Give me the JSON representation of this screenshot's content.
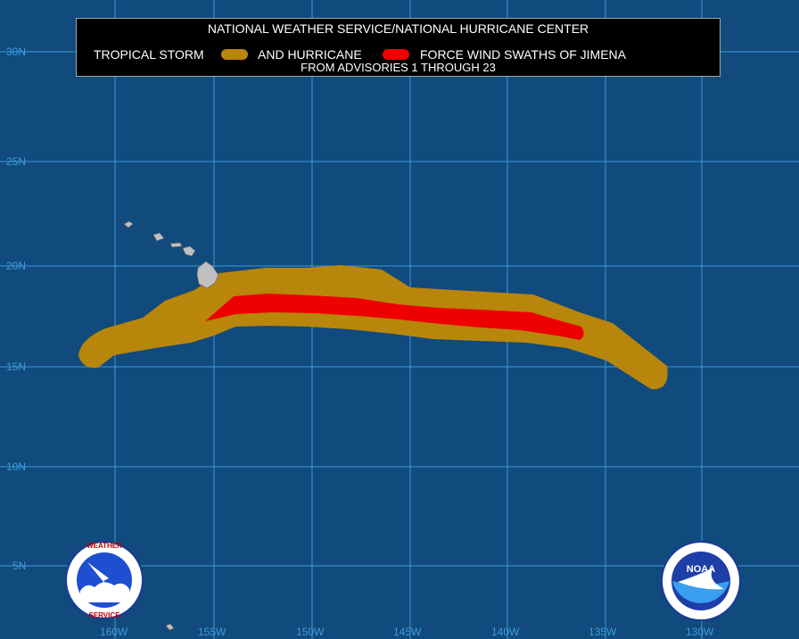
{
  "title": {
    "line1": "NATIONAL WEATHER SERVICE/NATIONAL HURRICANE CENTER",
    "ts_label": "TROPICAL STORM",
    "and_label": "AND HURRICANE",
    "force_label": "FORCE WIND SWATHS OF JIMENA",
    "line3": "FROM ADVISORIES 1 THROUGH 23"
  },
  "colors": {
    "ocean": "#114a7c",
    "grid": "#3c9bdc",
    "tropical_storm_swath": "#b8860b",
    "hurricane_swath": "#ee0000",
    "land": "#c0c0c0"
  },
  "latitudes": [
    "30N",
    "25N",
    "20N",
    "15N",
    "10N",
    "5N"
  ],
  "longitudes": [
    "160W",
    "155W",
    "150W",
    "145W",
    "140W",
    "135W",
    "130W"
  ],
  "logos": {
    "nws": "National Weather Service logo",
    "noaa_text": "NOAA"
  }
}
